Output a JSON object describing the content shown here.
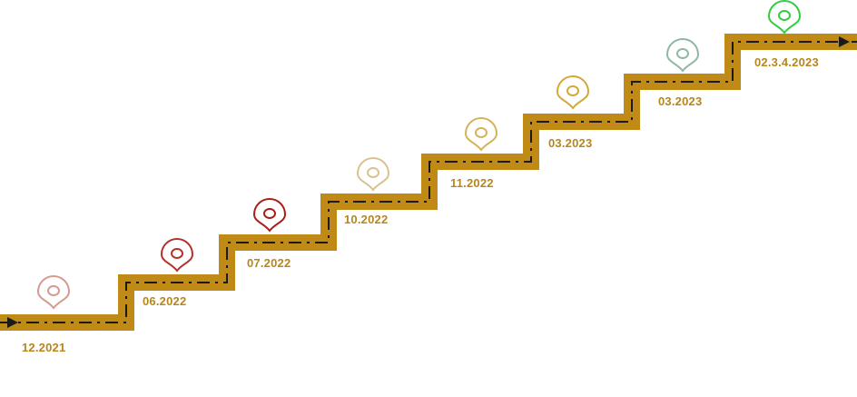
{
  "colors": {
    "path": "#c08a17",
    "dash": "#1a1a1a",
    "label": "#b7861c"
  },
  "milestones": [
    {
      "label": "12.2021",
      "pin_color": "#d49a90"
    },
    {
      "label": "06.2022",
      "pin_color": "#b5302a"
    },
    {
      "label": "07.2022",
      "pin_color": "#a81e15"
    },
    {
      "label": "10.2022",
      "pin_color": "#d9c28e"
    },
    {
      "label": "11.2022",
      "pin_color": "#d4b258"
    },
    {
      "label": "03.2023",
      "pin_color": "#d3a835"
    },
    {
      "label": "03.2023",
      "pin_color": "#8fb8a3"
    },
    {
      "label": "02.3.4.2023",
      "pin_color": "#2ecf3c"
    }
  ]
}
